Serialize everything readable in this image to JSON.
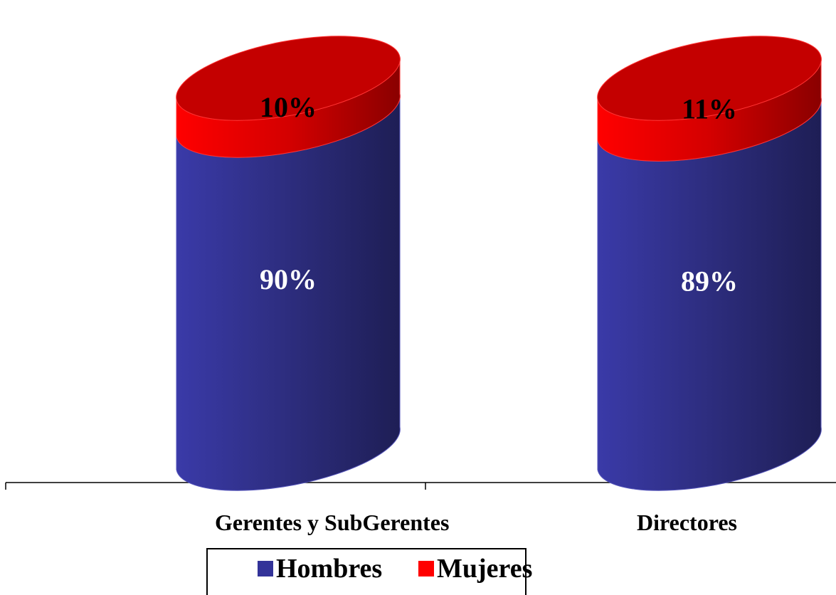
{
  "chart_data": {
    "type": "bar",
    "stacked": true,
    "categories": [
      "Gerentes y SubGerentes",
      "Directores"
    ],
    "series": [
      {
        "name": "Hombres",
        "values": [
          90,
          89
        ],
        "labels": [
          "90%",
          "89%"
        ],
        "color": "#333399",
        "label_color": "#ffffff"
      },
      {
        "name": "Mujeres",
        "values": [
          10,
          11
        ],
        "labels": [
          "10%",
          "11%"
        ],
        "color": "#ff0000",
        "label_color": "#000000"
      }
    ],
    "ylim": [
      0,
      100
    ],
    "legend_position": "bottom",
    "grid": false
  },
  "colors": {
    "hombres": "#333399",
    "mujeres": "#ff0000"
  }
}
